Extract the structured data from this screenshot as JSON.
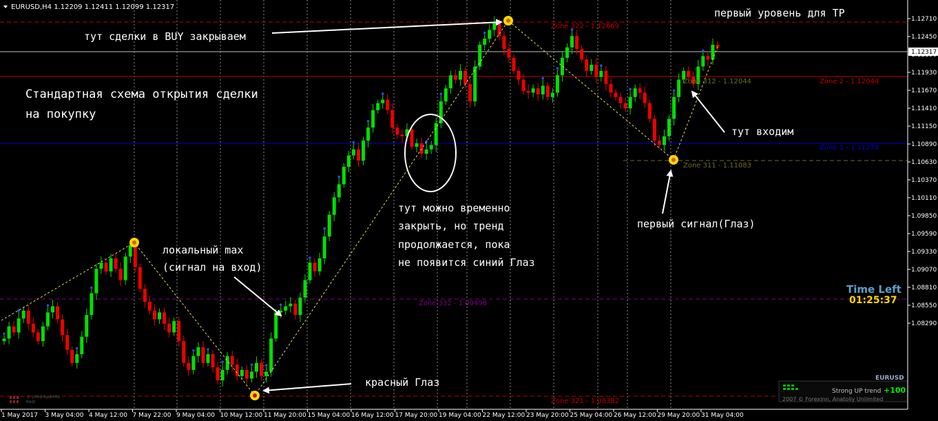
{
  "header": {
    "symbol_label": "EURUSD,H4  1.12209 1.12411 1.12099 1.12317"
  },
  "price_axis": {
    "ticks": [
      "1.12710",
      "1.12450",
      "1.12190",
      "1.11930",
      "1.11670",
      "1.11410",
      "1.11150",
      "1.10890",
      "1.10630",
      "1.10370",
      "1.10110",
      "1.09850",
      "1.09590",
      "1.09330",
      "1.09070",
      "1.08810",
      "1.08550",
      "1.08290"
    ],
    "current_price": "1.12317"
  },
  "time_axis": {
    "labels": [
      "1 May 2017",
      "3 May 04:00",
      "4 May 12:00",
      "7 May 22:00",
      "9 May 04:00",
      "10 May 12:00",
      "11 May 20:00",
      "15 May 04:00",
      "16 May 12:00",
      "17 May 20:00",
      "19 May 04:00",
      "22 May 12:00",
      "23 May 20:00",
      "25 May 04:00",
      "26 May 12:00",
      "29 May 20:00",
      "31 May 04:00"
    ]
  },
  "zones": {
    "z322": "Zone 322 - 1.12669",
    "z312": "Zone 312 - 1.12044",
    "z2": "Zone 2 - 1.12044",
    "z1": "Zone 1 - 1.11278",
    "z311": "Zone 311 - 1.11083",
    "z332": "Zone 332 - 1.09498",
    "z321": "Zone 321 - 1.08382"
  },
  "annotations": {
    "tp_level": "первый уровень для TP",
    "close_buy": "тут сделки в BUY закрываем",
    "scheme_line1": "Стандартная схема открытия сделки",
    "scheme_line2": "на покупку",
    "local_max_line1": "локальный max",
    "local_max_line2": "(сигнал на вход)",
    "temp_close_line1": "тут можно временно",
    "temp_close_line2": "закрыть, но тренд",
    "temp_close_line3": "продолжается, пока",
    "temp_close_line4": "не появится синий Глаз",
    "red_eye": "красный Глаз",
    "enter_here": "тут входим",
    "first_signal": "первый сигнал(Глаз)"
  },
  "indicator": {
    "time_left_label": "Time Left",
    "time_left_value": "01:25:37",
    "symbol": "EURUSD",
    "trend_text": "Strong UP trend",
    "trend_value": "+100",
    "copyright": "2007 © Forexinn, Anatoliy Unlimited",
    "watermark1": "© 2008 KedrMts",
    "watermark2": "Kedr"
  },
  "colors": {
    "bull": "#00e000",
    "bear": "#ee0000",
    "zone_red": "#c00000",
    "zone_blue": "#0000cc",
    "zone_purple": "#800080",
    "zone_olive": "#6b6b2a",
    "time_left": "#5aa0c8",
    "countdown": "#ffd700"
  },
  "chart_data": {
    "type": "candlestick",
    "symbol": "EURUSD",
    "timeframe": "H4",
    "ylim": [
      1.082,
      1.128
    ],
    "zones": [
      {
        "name": "Zone 322",
        "price": 1.12669
      },
      {
        "name": "Zone 312",
        "price": 1.12044
      },
      {
        "name": "Zone 2",
        "price": 1.12044
      },
      {
        "name": "Zone 1",
        "price": 1.11278
      },
      {
        "name": "Zone 311",
        "price": 1.11083
      },
      {
        "name": "Zone 332",
        "price": 1.09498
      },
      {
        "name": "Zone 321",
        "price": 1.08382
      }
    ],
    "zigzag": [
      1.092,
      1.1015,
      1.0838,
      1.1267,
      1.1108,
      1.124
    ],
    "signals": [
      {
        "kind": "eye",
        "price": 1.1015
      },
      {
        "kind": "eye",
        "price": 1.0838
      },
      {
        "kind": "eye",
        "price": 1.1267
      },
      {
        "kind": "eye",
        "price": 1.1108
      }
    ],
    "closes": [
      1.0898,
      1.0912,
      1.0905,
      1.0921,
      1.093,
      1.0915,
      1.0905,
      1.0895,
      1.0912,
      1.0928,
      1.0935,
      1.092,
      1.0902,
      1.0885,
      1.087,
      1.088,
      1.09,
      1.0925,
      1.095,
      1.0978,
      1.0985,
      1.0975,
      1.099,
      1.0978,
      1.0965,
      1.0992,
      1.1005,
      1.098,
      1.0955,
      1.094,
      1.093,
      1.092,
      1.0928,
      1.0915,
      1.0905,
      1.0918,
      1.0895,
      1.087,
      1.0862,
      1.0878,
      1.0888,
      1.087,
      1.088,
      1.0865,
      1.085,
      1.0862,
      1.0878,
      1.0868,
      1.0855,
      1.0862,
      1.0852,
      1.086,
      1.087,
      1.0855,
      1.086,
      1.0898,
      1.0928,
      1.093,
      1.0935,
      1.0938,
      1.0925,
      1.0945,
      1.0965,
      1.0985,
      1.0975,
      1.099,
      1.1015,
      1.104,
      1.106,
      1.1075,
      1.1095,
      1.1108,
      1.1115,
      1.1102,
      1.1125,
      1.114,
      1.116,
      1.1168,
      1.1172,
      1.116,
      1.114,
      1.1132,
      1.113,
      1.1138,
      1.1118,
      1.1122,
      1.111,
      1.1115,
      1.112,
      1.1145,
      1.117,
      1.1185,
      1.12,
      1.1195,
      1.1205,
      1.119,
      1.117,
      1.121,
      1.1235,
      1.1242,
      1.1252,
      1.126,
      1.1245,
      1.123,
      1.122,
      1.1205,
      1.1195,
      1.1182,
      1.118,
      1.1185,
      1.1178,
      1.1188,
      1.1175,
      1.118,
      1.12,
      1.122,
      1.1232,
      1.1245,
      1.123,
      1.1218,
      1.1205,
      1.1212,
      1.1198,
      1.1205,
      1.119,
      1.118,
      1.1175,
      1.1168,
      1.1162,
      1.1175,
      1.1185,
      1.118,
      1.1168,
      1.115,
      1.1125,
      1.112,
      1.113,
      1.115,
      1.1175,
      1.1195,
      1.1205,
      1.1198,
      1.119,
      1.121,
      1.1222,
      1.1218,
      1.1235,
      1.1232
    ]
  }
}
